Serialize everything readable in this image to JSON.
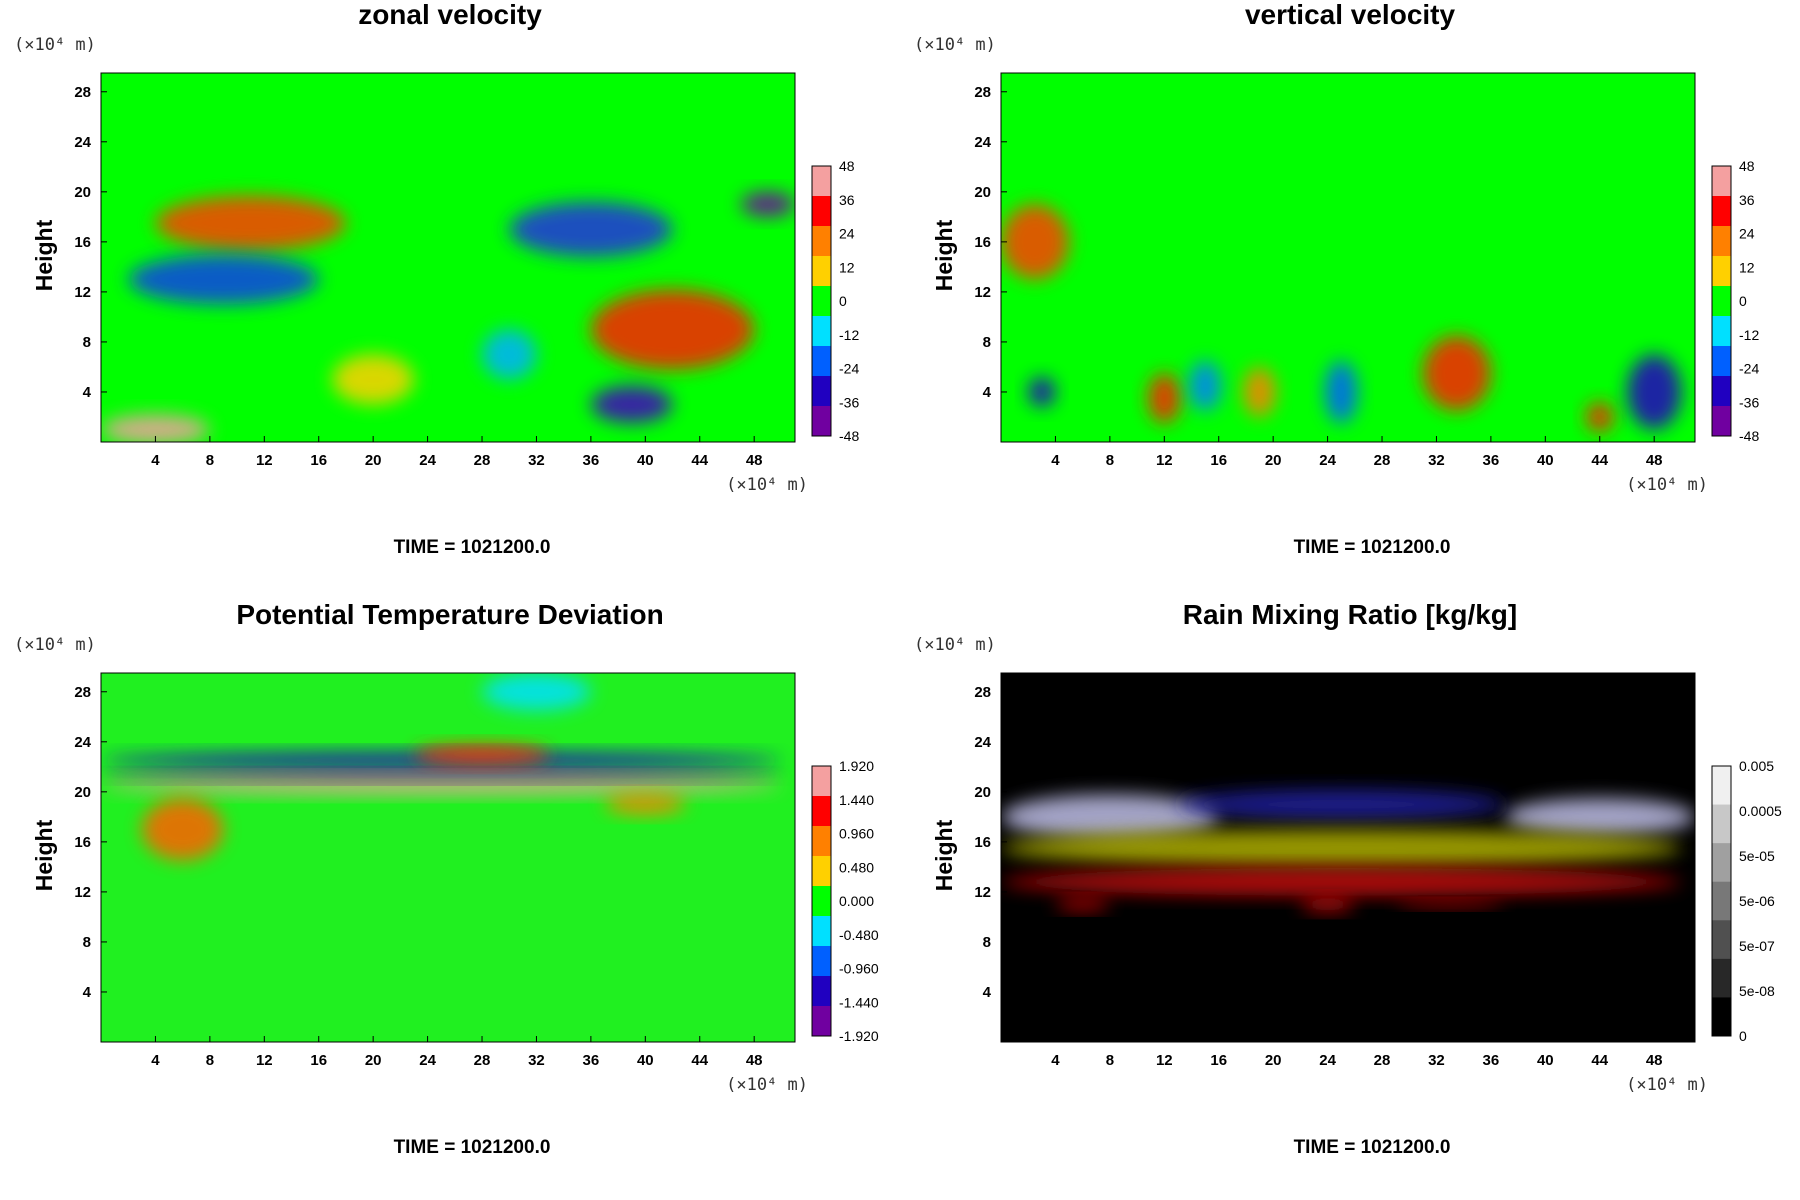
{
  "chart_data": [
    {
      "type": "heatmap",
      "title": "zonal velocity",
      "ylabel": "Height",
      "x_unit": "(×10⁴ m)",
      "y_unit": "(×10⁴ m)",
      "x_ticks": [
        "4",
        "8",
        "12",
        "16",
        "20",
        "24",
        "28",
        "32",
        "36",
        "40",
        "44",
        "48"
      ],
      "y_ticks": [
        "4",
        "8",
        "12",
        "16",
        "20",
        "24",
        "28"
      ],
      "xlim": [
        0,
        51
      ],
      "ylim": [
        0,
        29.5
      ],
      "colorbar": {
        "labels": [
          "48",
          "36",
          "24",
          "12",
          "0",
          "-12",
          "-24",
          "-36",
          "-48"
        ],
        "colors": [
          "#f4a0a0",
          "#ff0000",
          "#ff8000",
          "#ffd000",
          "#00ff00",
          "#00e0ff",
          "#0060ff",
          "#2000c0",
          "#7000a0"
        ]
      },
      "background": "#00ff00",
      "footer": "TIME = 1021200.0",
      "features": [
        {
          "x": 11,
          "y": 17.5,
          "rx": 7,
          "ry": 2.2,
          "color": "#ff4000"
        },
        {
          "x": 36,
          "y": 17,
          "rx": 6,
          "ry": 2.2,
          "color": "#2030e0"
        },
        {
          "x": 9,
          "y": 13,
          "rx": 7,
          "ry": 2,
          "color": "#1040e8"
        },
        {
          "x": 42,
          "y": 9,
          "rx": 6,
          "ry": 3.2,
          "color": "#ff2000"
        },
        {
          "x": 39,
          "y": 3,
          "rx": 3,
          "ry": 1.5,
          "color": "#4000c0"
        },
        {
          "x": 4,
          "y": 1,
          "rx": 4,
          "ry": 1.2,
          "color": "#f4a0a0"
        },
        {
          "x": 20,
          "y": 5,
          "rx": 3,
          "ry": 2,
          "color": "#ffd000"
        },
        {
          "x": 30,
          "y": 7,
          "rx": 2,
          "ry": 2,
          "color": "#00b0ff"
        },
        {
          "x": 49,
          "y": 19,
          "rx": 2,
          "ry": 1,
          "color": "#7000a0"
        }
      ]
    },
    {
      "type": "heatmap",
      "title": "vertical velocity",
      "ylabel": "Height",
      "x_unit": "(×10⁴ m)",
      "y_unit": "(×10⁴ m)",
      "x_ticks": [
        "4",
        "8",
        "12",
        "16",
        "20",
        "24",
        "28",
        "32",
        "36",
        "40",
        "44",
        "48"
      ],
      "y_ticks": [
        "4",
        "8",
        "12",
        "16",
        "20",
        "24",
        "28"
      ],
      "xlim": [
        0,
        51
      ],
      "ylim": [
        0,
        29.5
      ],
      "colorbar": {
        "labels": [
          "48",
          "36",
          "24",
          "12",
          "0",
          "-12",
          "-24",
          "-36",
          "-48"
        ],
        "colors": [
          "#f4a0a0",
          "#ff0000",
          "#ff8000",
          "#ffd000",
          "#00ff00",
          "#00e0ff",
          "#0060ff",
          "#2000c0",
          "#7000a0"
        ]
      },
      "background": "#00ff00",
      "footer": "TIME = 1021200.0",
      "features": [
        {
          "x": 2.5,
          "y": 16,
          "rx": 2.5,
          "ry": 3,
          "color": "#ff4000"
        },
        {
          "x": 12,
          "y": 3.5,
          "rx": 1.2,
          "ry": 2,
          "color": "#ff2000"
        },
        {
          "x": 19,
          "y": 4,
          "rx": 1.2,
          "ry": 2,
          "color": "#ff8000"
        },
        {
          "x": 33.5,
          "y": 5.5,
          "rx": 2.5,
          "ry": 3,
          "color": "#ff2000"
        },
        {
          "x": 44,
          "y": 2,
          "rx": 1,
          "ry": 1.2,
          "color": "#ff2000"
        },
        {
          "x": 48,
          "y": 4,
          "rx": 2,
          "ry": 3,
          "color": "#2000c0"
        },
        {
          "x": 25,
          "y": 4,
          "rx": 1.2,
          "ry": 2.5,
          "color": "#0060ff"
        },
        {
          "x": 15,
          "y": 4.5,
          "rx": 1.2,
          "ry": 2,
          "color": "#0080ff"
        },
        {
          "x": 3,
          "y": 4,
          "rx": 1,
          "ry": 1.2,
          "color": "#2000c0"
        }
      ]
    },
    {
      "type": "heatmap",
      "title": "Potential Temperature Deviation",
      "ylabel": "Height",
      "x_unit": "(×10⁴ m)",
      "y_unit": "(×10⁴ m)",
      "x_ticks": [
        "4",
        "8",
        "12",
        "16",
        "20",
        "24",
        "28",
        "32",
        "36",
        "40",
        "44",
        "48"
      ],
      "y_ticks": [
        "4",
        "8",
        "12",
        "16",
        "20",
        "24",
        "28"
      ],
      "xlim": [
        0,
        51
      ],
      "ylim": [
        0,
        29.5
      ],
      "colorbar": {
        "labels": [
          "1.920",
          "1.440",
          "0.960",
          "0.480",
          "0.000",
          "-0.480",
          "-0.960",
          "-1.440",
          "-1.920"
        ],
        "colors": [
          "#f4a0a0",
          "#ff0000",
          "#ff8000",
          "#ffd000",
          "#00ff00",
          "#00e0ff",
          "#0060ff",
          "#2000c0",
          "#7000a0"
        ]
      },
      "background": "#20f020",
      "footer": "TIME = 1021200.0",
      "features": [
        {
          "x": 25,
          "y": 22.5,
          "rx": 25,
          "ry": 0.7,
          "color": "#2000c0"
        },
        {
          "x": 25,
          "y": 20.5,
          "rx": 25,
          "ry": 0.7,
          "color": "#f4a0a0"
        },
        {
          "x": 25,
          "y": 21.3,
          "rx": 25,
          "ry": 0.4,
          "color": "#7000a0"
        },
        {
          "x": 28,
          "y": 23,
          "rx": 5,
          "ry": 0.8,
          "color": "#ff3000"
        },
        {
          "x": 32,
          "y": 28,
          "rx": 4,
          "ry": 1.5,
          "color": "#00e0ff"
        },
        {
          "x": 6,
          "y": 17,
          "rx": 3,
          "ry": 2.5,
          "color": "#ff6000"
        },
        {
          "x": 40,
          "y": 19,
          "rx": 3,
          "ry": 0.8,
          "color": "#ff8000"
        }
      ]
    },
    {
      "type": "heatmap",
      "title": "Rain Mixing Ratio [kg/kg]",
      "ylabel": "Height",
      "x_unit": "(×10⁴ m)",
      "y_unit": "(×10⁴ m)",
      "x_ticks": [
        "4",
        "8",
        "12",
        "16",
        "20",
        "24",
        "28",
        "32",
        "36",
        "40",
        "44",
        "48"
      ],
      "y_ticks": [
        "4",
        "8",
        "12",
        "16",
        "20",
        "24",
        "28"
      ],
      "xlim": [
        0,
        51
      ],
      "ylim": [
        0,
        29.5
      ],
      "colorbar": {
        "labels": [
          "0.005",
          "0.0005",
          "5e-05",
          "5e-06",
          "5e-07",
          "5e-08",
          "0"
        ],
        "colors": [
          "#f0f0f0",
          "#c8c8c8",
          "#a0a0a0",
          "#787878",
          "#505050",
          "#282828",
          "#000000"
        ]
      },
      "background": "#000000",
      "footer": "TIME = 1021200.0",
      "features": [
        {
          "x": 8,
          "y": 18,
          "rx": 8,
          "ry": 1.8,
          "color": "#c0c0e8"
        },
        {
          "x": 44,
          "y": 18,
          "rx": 7,
          "ry": 1.5,
          "color": "#c0c0e8"
        },
        {
          "x": 25,
          "y": 19,
          "rx": 12,
          "ry": 1.2,
          "color": "#2020a0"
        },
        {
          "x": 25,
          "y": 15.5,
          "rx": 25,
          "ry": 1.5,
          "color": "#b0b000"
        },
        {
          "x": 25,
          "y": 12.8,
          "rx": 25,
          "ry": 1.1,
          "color": "#cc1010"
        },
        {
          "x": 24,
          "y": 11,
          "rx": 2,
          "ry": 0.6,
          "color": "#cc1010"
        },
        {
          "x": 33,
          "y": 11,
          "rx": 4,
          "ry": 0.3,
          "color": "#cc1010"
        },
        {
          "x": 6,
          "y": 11,
          "rx": 2,
          "ry": 0.5,
          "color": "#cc1010"
        }
      ]
    }
  ]
}
